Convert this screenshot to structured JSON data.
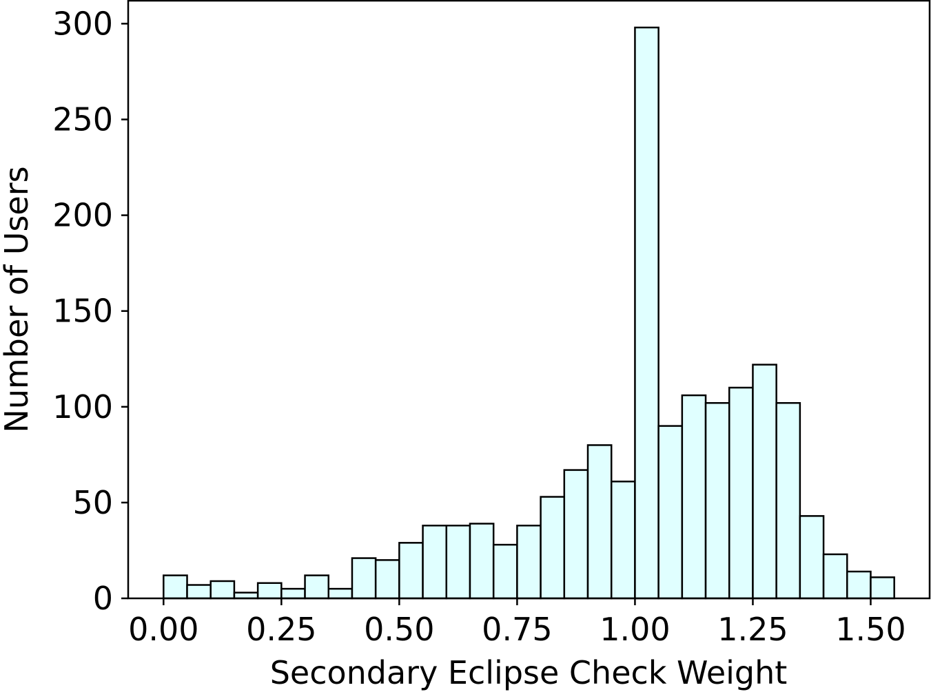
{
  "chart_data": {
    "type": "bar",
    "title": "",
    "xlabel": "Secondary Eclipse Check Weight",
    "ylabel": "Number of Users",
    "xlim": [
      -0.075,
      1.625
    ],
    "ylim": [
      0,
      312
    ],
    "xticks": [
      "0.00",
      "0.25",
      "0.50",
      "0.75",
      "1.00",
      "1.25",
      "1.50"
    ],
    "yticks": [
      "0",
      "50",
      "100",
      "150",
      "200",
      "250",
      "300"
    ],
    "bin_width": 0.05,
    "bin_starts": [
      0.0,
      0.05,
      0.1,
      0.15,
      0.2,
      0.25,
      0.3,
      0.35,
      0.4,
      0.45,
      0.5,
      0.55,
      0.6,
      0.65,
      0.7,
      0.75,
      0.8,
      0.85,
      0.9,
      0.95,
      1.0,
      1.05,
      1.1,
      1.15,
      1.2,
      1.25,
      1.3,
      1.35,
      1.4,
      1.45,
      1.5
    ],
    "values": [
      12,
      7,
      9,
      3,
      8,
      5,
      12,
      5,
      21,
      20,
      29,
      38,
      38,
      39,
      28,
      38,
      53,
      67,
      80,
      61,
      298,
      90,
      106,
      102,
      110,
      122,
      102,
      43,
      23,
      14,
      11
    ],
    "bar_color": "#e0ffff",
    "edge_color": "#000000",
    "grid": false,
    "legend": "none"
  }
}
